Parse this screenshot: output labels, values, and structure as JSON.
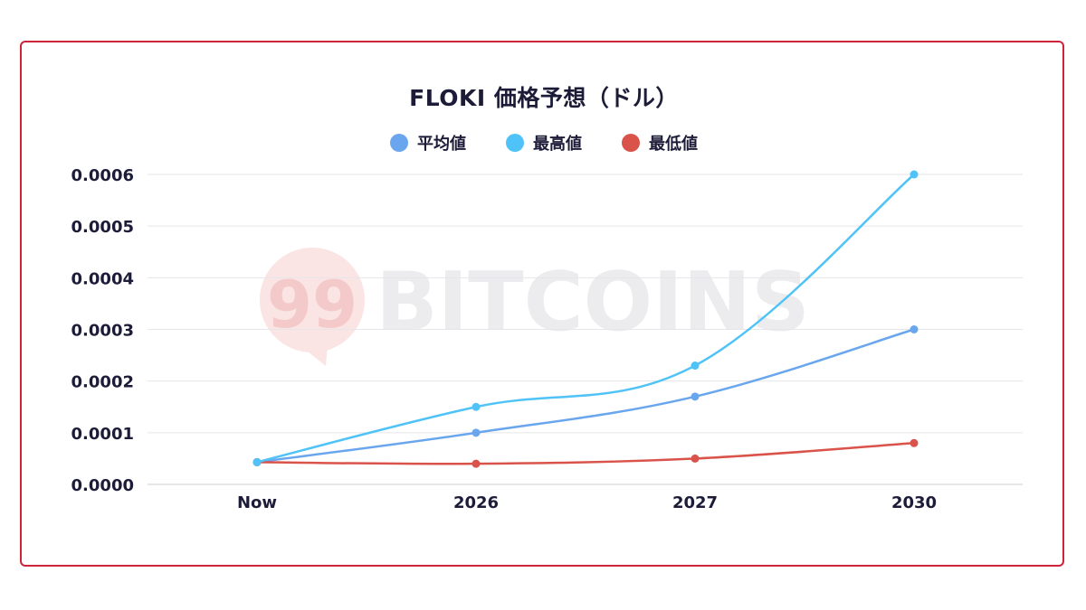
{
  "chart_data": {
    "type": "line",
    "title": "FLOKI 価格予想（ドル）",
    "xlabel": "",
    "ylabel": "",
    "categories": [
      "Now",
      "2026",
      "2027",
      "2030"
    ],
    "ylim": [
      0,
      0.0006
    ],
    "yticks": [
      "0.0000",
      "0.0001",
      "0.0002",
      "0.0003",
      "0.0004",
      "0.0005",
      "0.0006"
    ],
    "grid": true,
    "legend_position": "top-center",
    "series": [
      {
        "name": "平均値",
        "color": "#6aa6ee",
        "values": [
          4.3e-05,
          0.0001,
          0.00017,
          0.0003
        ]
      },
      {
        "name": "最高値",
        "color": "#4fc3f7",
        "values": [
          4.3e-05,
          0.00015,
          0.00023,
          0.0006
        ]
      },
      {
        "name": "最低値",
        "color": "#d9534a",
        "values": [
          4.3e-05,
          4e-05,
          5e-05,
          8e-05
        ]
      }
    ]
  },
  "watermark": {
    "logo_number": "99",
    "logo_text": "BITCOINS",
    "logo_color": "#f7d6d6"
  }
}
